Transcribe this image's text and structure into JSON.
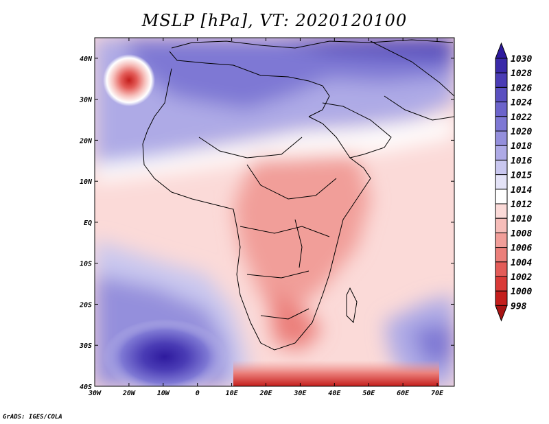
{
  "title": "MSLP [hPa], VT: 2020120100",
  "credit": "GrADS: IGES/COLA",
  "lat_labels": [
    "40N",
    "30N",
    "20N",
    "10N",
    "EQ",
    "10S",
    "20S",
    "30S",
    "40S"
  ],
  "lon_labels": [
    "30W",
    "20W",
    "10W",
    "0",
    "10E",
    "20E",
    "30E",
    "40E",
    "50E",
    "60E",
    "70E"
  ],
  "map_extent": {
    "lon": [
      -30,
      75
    ],
    "lat": [
      -40,
      45
    ]
  },
  "colorbar": {
    "levels": [
      "1030",
      "1028",
      "1026",
      "1024",
      "1022",
      "1020",
      "1018",
      "1016",
      "1015",
      "1014",
      "1012",
      "1010",
      "1008",
      "1006",
      "1004",
      "1002",
      "1000",
      "998"
    ],
    "colors": [
      "#2e1a9e",
      "#3a2aa8",
      "#4a3cb5",
      "#5a50c0",
      "#6c64cb",
      "#7e78d4",
      "#948fdc",
      "#aeaae6",
      "#c9c7ef",
      "#e4e3f7",
      "#ffffff",
      "#fbdad8",
      "#f6bdb9",
      "#f19e99",
      "#eb7f7a",
      "#e35c58",
      "#d93a37",
      "#c41e1c",
      "#a81414"
    ]
  }
}
